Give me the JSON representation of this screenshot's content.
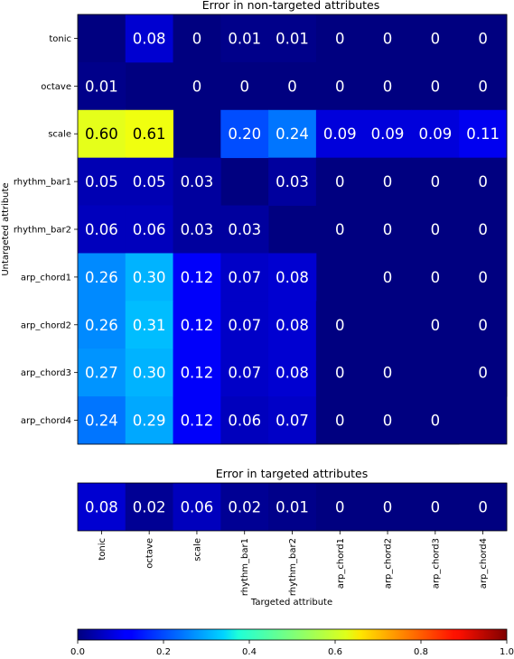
{
  "chart_data": [
    {
      "type": "heatmap",
      "title": "Error in non-targeted attributes",
      "ylabel": "Untargeted attribute",
      "columns": [
        "tonic",
        "octave",
        "scale",
        "rhythm_bar1",
        "rhythm_bar2",
        "arp_chord1",
        "arp_chord2",
        "arp_chord3",
        "arp_chord4"
      ],
      "rows": [
        "tonic",
        "octave",
        "scale",
        "rhythm_bar1",
        "rhythm_bar2",
        "arp_chord1",
        "arp_chord2",
        "arp_chord3",
        "arp_chord4"
      ],
      "values": [
        [
          null,
          0.08,
          0,
          0.01,
          0.01,
          0,
          0,
          0,
          0
        ],
        [
          0.01,
          null,
          0,
          0,
          0,
          0,
          0,
          0,
          0
        ],
        [
          0.6,
          0.61,
          null,
          0.2,
          0.24,
          0.09,
          0.09,
          0.09,
          0.11
        ],
        [
          0.05,
          0.05,
          0.03,
          null,
          0.03,
          0,
          0,
          0,
          0
        ],
        [
          0.06,
          0.06,
          0.03,
          0.03,
          null,
          0,
          0,
          0,
          0
        ],
        [
          0.26,
          0.3,
          0.12,
          0.07,
          0.08,
          null,
          0,
          0,
          0
        ],
        [
          0.26,
          0.31,
          0.12,
          0.07,
          0.08,
          0,
          null,
          0,
          0
        ],
        [
          0.27,
          0.3,
          0.12,
          0.07,
          0.08,
          0,
          0,
          null,
          0
        ],
        [
          0.24,
          0.29,
          0.12,
          0.06,
          0.07,
          0,
          0,
          0,
          null
        ]
      ],
      "labels": [
        [
          "",
          "0.08",
          "0",
          "0.01",
          "0.01",
          "0",
          "0",
          "0",
          "0"
        ],
        [
          "0.01",
          "",
          "0",
          "0",
          "0",
          "0",
          "0",
          "0",
          "0"
        ],
        [
          "0.60",
          "0.61",
          "",
          "0.20",
          "0.24",
          "0.09",
          "0.09",
          "0.09",
          "0.11"
        ],
        [
          "0.05",
          "0.05",
          "0.03",
          "",
          "0.03",
          "0",
          "0",
          "0",
          "0"
        ],
        [
          "0.06",
          "0.06",
          "0.03",
          "0.03",
          "",
          "0",
          "0",
          "0",
          "0"
        ],
        [
          "0.26",
          "0.30",
          "0.12",
          "0.07",
          "0.08",
          "",
          "0",
          "0",
          "0"
        ],
        [
          "0.26",
          "0.31",
          "0.12",
          "0.07",
          "0.08",
          "0",
          "",
          "0",
          "0"
        ],
        [
          "0.27",
          "0.30",
          "0.12",
          "0.07",
          "0.08",
          "0",
          "0",
          "",
          "0"
        ],
        [
          "0.24",
          "0.29",
          "0.12",
          "0.06",
          "0.07",
          "0",
          "0",
          "0",
          ""
        ]
      ]
    },
    {
      "type": "heatmap",
      "title": "Error in targeted attributes",
      "xlabel": "Targeted attribute",
      "columns": [
        "tonic",
        "octave",
        "scale",
        "rhythm_bar1",
        "rhythm_bar2",
        "arp_chord1",
        "arp_chord2",
        "arp_chord3",
        "arp_chord4"
      ],
      "values": [
        0.08,
        0.02,
        0.06,
        0.02,
        0.01,
        0,
        0,
        0,
        0
      ],
      "labels": [
        "0.08",
        "0.02",
        "0.06",
        "0.02",
        "0.01",
        "0",
        "0",
        "0",
        "0"
      ]
    }
  ],
  "colorbar": {
    "colormap": "jet",
    "range": [
      0.0,
      1.0
    ],
    "ticks": [
      "0.0",
      "0.2",
      "0.4",
      "0.6",
      "0.8",
      "1.0"
    ]
  }
}
